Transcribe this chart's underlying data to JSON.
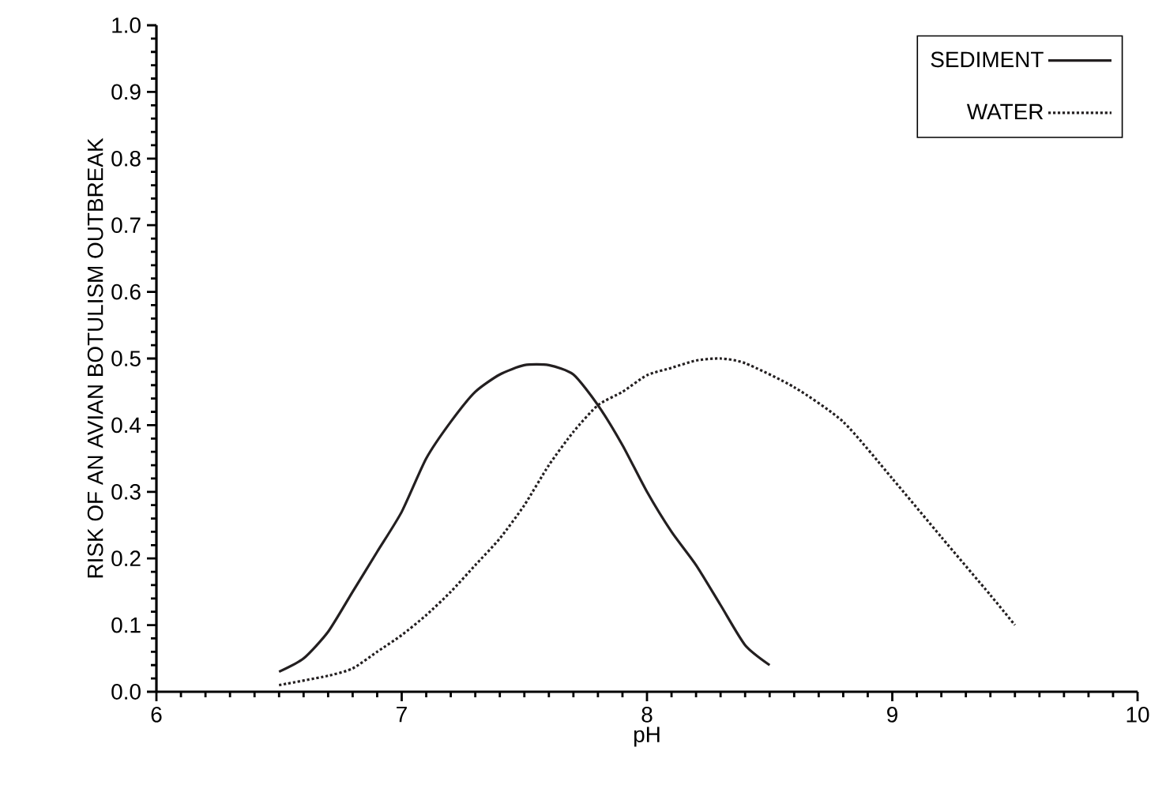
{
  "chart_data": {
    "type": "line",
    "xlabel": "pH",
    "ylabel": "RISK OF AN AVIAN BOTULISM OUTBREAK",
    "xlim": [
      6,
      10
    ],
    "xticks": [
      6,
      7,
      8,
      9,
      10
    ],
    "ylim": [
      0,
      1
    ],
    "yticks": [
      {
        "value": 0,
        "label": "0.0"
      },
      {
        "value": 0.1,
        "label": "0.1"
      },
      {
        "value": 0.2,
        "label": "0.2"
      },
      {
        "value": 0.3,
        "label": "0.3"
      },
      {
        "value": 0.4,
        "label": "0.4"
      },
      {
        "value": 0.5,
        "label": "0.5"
      },
      {
        "value": 0.6,
        "label": "0.6"
      },
      {
        "value": 0.7,
        "label": "0.7"
      },
      {
        "value": 0.8,
        "label": "0.8"
      },
      {
        "value": 0.9,
        "label": "0.9"
      },
      {
        "value": 1,
        "label": "1.0"
      }
    ],
    "legend": "top right",
    "grid": false,
    "series": [
      {
        "name": "SEDIMENT",
        "color": "#231f20",
        "line_style": "solid",
        "x": [
          6.5,
          6.6,
          6.7,
          6.8,
          6.9,
          7.0,
          7.1,
          7.2,
          7.3,
          7.4,
          7.5,
          7.6,
          7.7,
          7.8,
          7.9,
          8.0,
          8.1,
          8.2,
          8.3,
          8.4,
          8.5
        ],
        "values": [
          0.03,
          0.05,
          0.09,
          0.15,
          0.21,
          0.27,
          0.35,
          0.405,
          0.45,
          0.476,
          0.49,
          0.49,
          0.476,
          0.43,
          0.37,
          0.3,
          0.24,
          0.19,
          0.13,
          0.07,
          0.04
        ]
      },
      {
        "name": "WATER",
        "color": "#231f20",
        "line_style": "dotted",
        "x": [
          6.5,
          6.7,
          6.8,
          6.9,
          7.0,
          7.1,
          7.2,
          7.3,
          7.4,
          7.5,
          7.6,
          7.7,
          7.8,
          7.9,
          8.0,
          8.1,
          8.2,
          8.3,
          8.4,
          8.6,
          8.8,
          9.0,
          9.2,
          9.4,
          9.5
        ],
        "values": [
          0.01,
          0.024,
          0.035,
          0.06,
          0.085,
          0.115,
          0.15,
          0.19,
          0.23,
          0.28,
          0.34,
          0.39,
          0.43,
          0.45,
          0.475,
          0.486,
          0.497,
          0.5,
          0.493,
          0.457,
          0.405,
          0.32,
          0.232,
          0.145,
          0.1
        ]
      }
    ]
  }
}
